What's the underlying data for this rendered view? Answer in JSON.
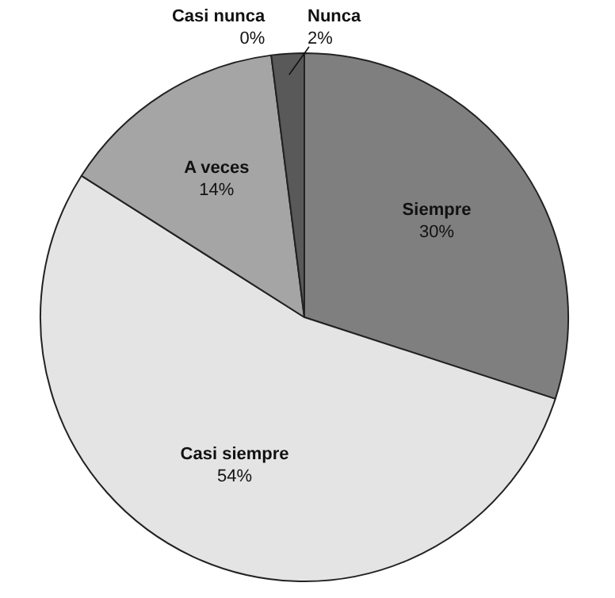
{
  "chart_data": {
    "type": "pie",
    "categories": [
      "Siempre",
      "Casi siempre",
      "A veces",
      "Casi nunca",
      "Nunca"
    ],
    "values": [
      30,
      54,
      14,
      0,
      2
    ],
    "colors": [
      "#7f7f7f",
      "#e4e4e4",
      "#a5a5a5",
      "#bfbfbf",
      "#595959"
    ],
    "value_labels": [
      "30%",
      "54%",
      "14%",
      "0%",
      "2%"
    ],
    "legend": false
  }
}
